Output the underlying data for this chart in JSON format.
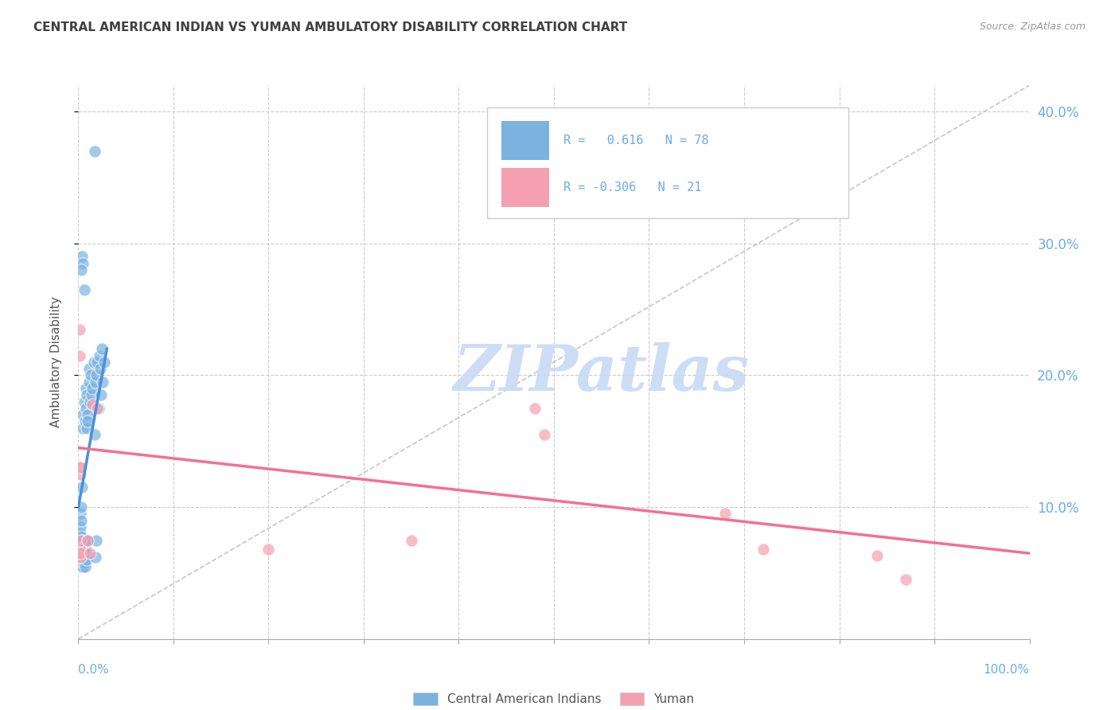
{
  "title": "CENTRAL AMERICAN INDIAN VS YUMAN AMBULATORY DISABILITY CORRELATION CHART",
  "source": "Source: ZipAtlas.com",
  "ylabel": "Ambulatory Disability",
  "xlim": [
    0.0,
    1.0
  ],
  "ylim": [
    0.0,
    0.42
  ],
  "yticks": [
    0.1,
    0.2,
    0.3,
    0.4
  ],
  "xticks": [
    0.0,
    0.1,
    0.2,
    0.3,
    0.4,
    0.5,
    0.6,
    0.7,
    0.8,
    0.9,
    1.0
  ],
  "background_color": "#ffffff",
  "grid_color": "#cccccc",
  "watermark_text": "ZIPatlas",
  "watermark_color": "#c8daf5",
  "legend_label_1": "Central American Indians",
  "legend_label_2": "Yuman",
  "color_blue": "#7ab3e0",
  "color_pink": "#f4a0b0",
  "color_blue_line": "#4a90d9",
  "color_pink_line": "#f47090",
  "color_diag": "#b8b8b8",
  "color_right_ticks": "#6aabea",
  "color_title": "#404040",
  "scatter_blue": [
    [
      0.001,
      0.078
    ],
    [
      0.001,
      0.072
    ],
    [
      0.001,
      0.068
    ],
    [
      0.002,
      0.075
    ],
    [
      0.002,
      0.08
    ],
    [
      0.002,
      0.065
    ],
    [
      0.002,
      0.095
    ],
    [
      0.002,
      0.06
    ],
    [
      0.002,
      0.07
    ],
    [
      0.002,
      0.085
    ],
    [
      0.003,
      0.06
    ],
    [
      0.003,
      0.065
    ],
    [
      0.003,
      0.073
    ],
    [
      0.003,
      0.09
    ],
    [
      0.003,
      0.06
    ],
    [
      0.003,
      0.068
    ],
    [
      0.003,
      0.078
    ],
    [
      0.003,
      0.1
    ],
    [
      0.003,
      0.055
    ],
    [
      0.003,
      0.062
    ],
    [
      0.004,
      0.07
    ],
    [
      0.004,
      0.058
    ],
    [
      0.004,
      0.065
    ],
    [
      0.004,
      0.075
    ],
    [
      0.004,
      0.115
    ],
    [
      0.004,
      0.06
    ],
    [
      0.004,
      0.068
    ],
    [
      0.004,
      0.055
    ],
    [
      0.004,
      0.065
    ],
    [
      0.005,
      0.16
    ],
    [
      0.005,
      0.06
    ],
    [
      0.005,
      0.17
    ],
    [
      0.005,
      0.055
    ],
    [
      0.005,
      0.063
    ],
    [
      0.005,
      0.058
    ],
    [
      0.005,
      0.07
    ],
    [
      0.006,
      0.058
    ],
    [
      0.006,
      0.18
    ],
    [
      0.006,
      0.06
    ],
    [
      0.006,
      0.065
    ],
    [
      0.006,
      0.07
    ],
    [
      0.007,
      0.165
    ],
    [
      0.007,
      0.055
    ],
    [
      0.007,
      0.07
    ],
    [
      0.008,
      0.175
    ],
    [
      0.008,
      0.19
    ],
    [
      0.008,
      0.065
    ],
    [
      0.009,
      0.075
    ],
    [
      0.009,
      0.185
    ],
    [
      0.009,
      0.16
    ],
    [
      0.009,
      0.06
    ],
    [
      0.01,
      0.17
    ],
    [
      0.01,
      0.075
    ],
    [
      0.01,
      0.165
    ],
    [
      0.011,
      0.195
    ],
    [
      0.011,
      0.205
    ],
    [
      0.012,
      0.18
    ],
    [
      0.013,
      0.2
    ],
    [
      0.014,
      0.185
    ],
    [
      0.015,
      0.19
    ],
    [
      0.016,
      0.21
    ],
    [
      0.017,
      0.155
    ],
    [
      0.018,
      0.195
    ],
    [
      0.019,
      0.2
    ],
    [
      0.02,
      0.21
    ],
    [
      0.021,
      0.175
    ],
    [
      0.022,
      0.215
    ],
    [
      0.023,
      0.205
    ],
    [
      0.024,
      0.185
    ],
    [
      0.025,
      0.22
    ],
    [
      0.026,
      0.195
    ],
    [
      0.027,
      0.21
    ],
    [
      0.004,
      0.29
    ],
    [
      0.005,
      0.285
    ],
    [
      0.006,
      0.265
    ],
    [
      0.003,
      0.28
    ],
    [
      0.017,
      0.37
    ],
    [
      0.018,
      0.062
    ],
    [
      0.019,
      0.075
    ]
  ],
  "scatter_pink": [
    [
      0.001,
      0.235
    ],
    [
      0.001,
      0.215
    ],
    [
      0.001,
      0.13
    ],
    [
      0.002,
      0.125
    ],
    [
      0.002,
      0.13
    ],
    [
      0.002,
      0.068
    ],
    [
      0.002,
      0.075
    ],
    [
      0.002,
      0.062
    ],
    [
      0.002,
      0.065
    ],
    [
      0.01,
      0.075
    ],
    [
      0.012,
      0.065
    ],
    [
      0.015,
      0.178
    ],
    [
      0.02,
      0.175
    ],
    [
      0.2,
      0.068
    ],
    [
      0.35,
      0.075
    ],
    [
      0.48,
      0.175
    ],
    [
      0.49,
      0.155
    ],
    [
      0.68,
      0.095
    ],
    [
      0.72,
      0.068
    ],
    [
      0.84,
      0.063
    ],
    [
      0.87,
      0.045
    ]
  ],
  "blue_line_x": [
    0.0,
    0.03
  ],
  "blue_line_y": [
    0.1,
    0.22
  ],
  "pink_line_x": [
    0.0,
    1.0
  ],
  "pink_line_y": [
    0.145,
    0.065
  ],
  "diag_line_x": [
    0.0,
    1.0
  ],
  "diag_line_y": [
    0.0,
    0.42
  ]
}
